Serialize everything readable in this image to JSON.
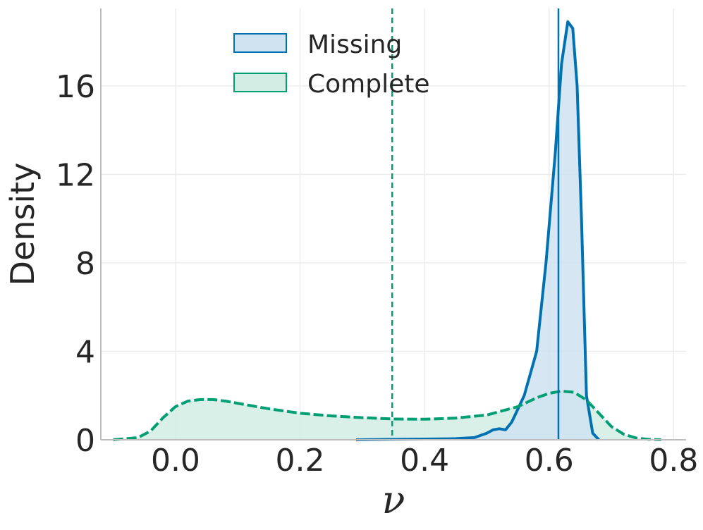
{
  "chart_data": {
    "type": "area",
    "xlabel": "ν",
    "ylabel": "Density",
    "xlim": [
      -0.12,
      0.82
    ],
    "ylim": [
      0,
      19.5
    ],
    "x_ticks": [
      0.0,
      0.2,
      0.4,
      0.6,
      0.8
    ],
    "x_tick_labels": [
      "0.0",
      "0.2",
      "0.4",
      "0.6",
      "0.8"
    ],
    "y_ticks": [
      0,
      4,
      8,
      12,
      16
    ],
    "y_tick_labels": [
      "0",
      "4",
      "8",
      "12",
      "16"
    ],
    "grid": true,
    "legend_position": "top-center",
    "series": [
      {
        "name": "Missing",
        "color": "#0072b2",
        "fill": "#cfe3f1",
        "line_style": "solid",
        "reference_line": 0.615,
        "reference_style": "solid",
        "x": [
          0.29,
          0.35,
          0.4,
          0.45,
          0.48,
          0.5,
          0.51,
          0.52,
          0.53,
          0.54,
          0.56,
          0.58,
          0.595,
          0.61,
          0.62,
          0.63,
          0.638,
          0.645,
          0.652,
          0.66,
          0.67,
          0.68
        ],
        "y": [
          0.0,
          0.02,
          0.03,
          0.05,
          0.1,
          0.3,
          0.45,
          0.5,
          0.45,
          0.8,
          2.0,
          4.0,
          8.0,
          13.0,
          17.0,
          18.9,
          18.6,
          16.0,
          10.0,
          2.0,
          0.3,
          0.0
        ]
      },
      {
        "name": "Complete",
        "color": "#009e73",
        "fill": "#d2ede4",
        "line_style": "dashed",
        "reference_line": 0.348,
        "reference_style": "dashed",
        "x": [
          -0.1,
          -0.06,
          -0.04,
          -0.02,
          0.0,
          0.02,
          0.04,
          0.06,
          0.08,
          0.1,
          0.15,
          0.2,
          0.25,
          0.3,
          0.35,
          0.4,
          0.45,
          0.5,
          0.55,
          0.58,
          0.6,
          0.62,
          0.64,
          0.66,
          0.68,
          0.7,
          0.72,
          0.74,
          0.76,
          0.78
        ],
        "y": [
          0.0,
          0.1,
          0.4,
          1.0,
          1.5,
          1.75,
          1.82,
          1.82,
          1.75,
          1.65,
          1.4,
          1.2,
          1.08,
          1.0,
          0.94,
          0.93,
          0.98,
          1.12,
          1.5,
          1.9,
          2.1,
          2.2,
          2.15,
          1.8,
          1.2,
          0.6,
          0.25,
          0.08,
          0.02,
          0.0
        ]
      }
    ]
  }
}
